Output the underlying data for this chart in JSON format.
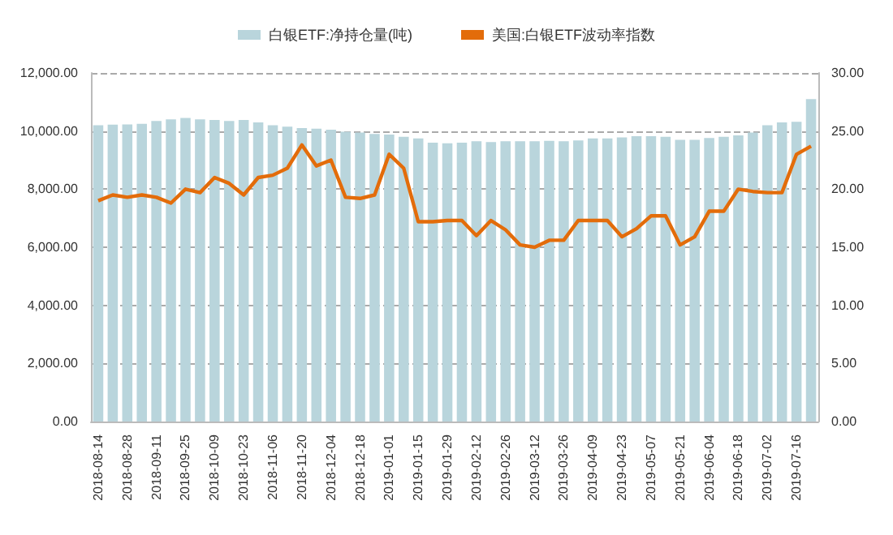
{
  "chart_data": {
    "type": "bar",
    "categories": [
      "2018-08-14",
      null,
      "2018-08-28",
      null,
      "2018-09-11",
      null,
      "2018-09-25",
      null,
      "2018-10-09",
      null,
      "2018-10-23",
      null,
      "2018-11-06",
      null,
      "2018-11-20",
      null,
      "2018-12-04",
      null,
      "2018-12-18",
      null,
      "2019-01-01",
      null,
      "2019-01-15",
      null,
      "2019-01-29",
      null,
      "2019-02-12",
      null,
      "2019-02-26",
      null,
      "2019-03-12",
      null,
      "2019-03-26",
      null,
      "2019-04-09",
      null,
      "2019-04-23",
      null,
      "2019-05-07",
      null,
      "2019-05-21",
      null,
      "2019-06-04",
      null,
      "2019-06-18",
      null,
      "2019-07-02",
      null,
      "2019-07-16",
      null
    ],
    "series": [
      {
        "name": "白银ETF:净持仓量(吨)",
        "color": "#b9d5dc",
        "values": [
          10200,
          10220,
          10230,
          10250,
          10350,
          10400,
          10450,
          10400,
          10380,
          10350,
          10380,
          10300,
          10200,
          10150,
          10100,
          10080,
          10050,
          9980,
          9950,
          9900,
          9880,
          9800,
          9750,
          9600,
          9580,
          9600,
          9650,
          9620,
          9650,
          9650,
          9650,
          9660,
          9650,
          9680,
          9750,
          9750,
          9780,
          9820,
          9820,
          9800,
          9700,
          9700,
          9760,
          9800,
          9850,
          9950,
          10200,
          10300,
          10320,
          11100
        ]
      },
      {
        "name": "美国:白银ETF波动率指数",
        "type": "line",
        "axis": "y2",
        "color": "#e36c0a",
        "values": [
          19.0,
          19.5,
          19.3,
          19.5,
          19.3,
          18.8,
          20.0,
          19.7,
          21.0,
          20.5,
          19.5,
          21.0,
          21.2,
          21.8,
          23.8,
          22.0,
          22.5,
          19.3,
          19.2,
          19.5,
          23.0,
          21.8,
          17.2,
          17.2,
          17.3,
          17.3,
          16.0,
          17.3,
          16.5,
          15.2,
          15.0,
          15.6,
          15.6,
          17.3,
          17.3,
          17.3,
          15.9,
          16.6,
          17.7,
          17.7,
          15.2,
          15.9,
          18.1,
          18.1,
          20.0,
          19.8,
          19.7,
          19.7,
          23.0,
          23.7
        ]
      }
    ],
    "ylim": [
      0,
      12000
    ],
    "yticks": [
      {
        "value": 0,
        "label": "0.00"
      },
      {
        "value": 2000,
        "label": "2,000.00"
      },
      {
        "value": 4000,
        "label": "4,000.00"
      },
      {
        "value": 6000,
        "label": "6,000.00"
      },
      {
        "value": 8000,
        "label": "8,000.00"
      },
      {
        "value": 10000,
        "label": "10,000.00"
      },
      {
        "value": 12000,
        "label": "12,000.00"
      }
    ],
    "y2lim": [
      0,
      30
    ],
    "y2ticks": [
      {
        "value": 0,
        "label": "0.00"
      },
      {
        "value": 5,
        "label": "5.00"
      },
      {
        "value": 10,
        "label": "10.00"
      },
      {
        "value": 15,
        "label": "15.00"
      },
      {
        "value": 20,
        "label": "20.00"
      },
      {
        "value": 25,
        "label": "25.00"
      },
      {
        "value": 30,
        "label": "30.00"
      }
    ],
    "grid": "y",
    "legend": "top",
    "marker": "none",
    "line_style": "solid"
  }
}
